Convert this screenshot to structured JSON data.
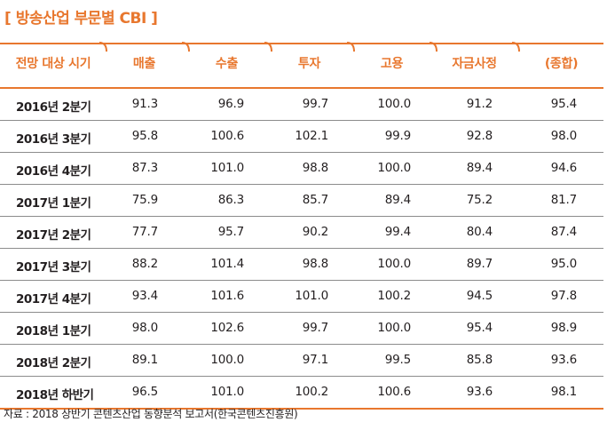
{
  "title": "[ 방송산업 부문별 CBI ]",
  "accent_color": "#e8772e",
  "columns": [
    "전망 대상 시기",
    "매출",
    "수출",
    "투자",
    "고용",
    "자금사정",
    "(종합)"
  ],
  "rows": [
    {
      "period": "2016년 2분기",
      "values": [
        "91.3",
        "96.9",
        "99.7",
        "100.0",
        "91.2",
        "95.4"
      ]
    },
    {
      "period": "2016년 3분기",
      "values": [
        "95.8",
        "100.6",
        "102.1",
        "99.9",
        "92.8",
        "98.0"
      ]
    },
    {
      "period": "2016년 4분기",
      "values": [
        "87.3",
        "101.0",
        "98.8",
        "100.0",
        "89.4",
        "94.6"
      ]
    },
    {
      "period": "2017년 1분기",
      "values": [
        "75.9",
        "86.3",
        "85.7",
        "89.4",
        "75.2",
        "81.7"
      ]
    },
    {
      "period": "2017년 2분기",
      "values": [
        "77.7",
        "95.7",
        "90.2",
        "99.4",
        "80.4",
        "87.4"
      ]
    },
    {
      "period": "2017년 3분기",
      "values": [
        "88.2",
        "101.4",
        "98.8",
        "100.0",
        "89.7",
        "95.0"
      ]
    },
    {
      "period": "2017년 4분기",
      "values": [
        "93.4",
        "101.6",
        "101.0",
        "100.2",
        "94.5",
        "97.8"
      ]
    },
    {
      "period": "2018년 1분기",
      "values": [
        "98.0",
        "102.6",
        "99.7",
        "100.0",
        "95.4",
        "98.9"
      ]
    },
    {
      "period": "2018년 2분기",
      "values": [
        "89.1",
        "100.0",
        "97.1",
        "99.5",
        "85.8",
        "93.6"
      ]
    },
    {
      "period": "2018년 하반기",
      "values": [
        "96.5",
        "101.0",
        "100.2",
        "100.6",
        "93.6",
        "98.1"
      ]
    }
  ],
  "source": "자료 : 2018 상반기 콘텐츠산업 동향분석 보고서(한국콘텐츠진흥원)"
}
